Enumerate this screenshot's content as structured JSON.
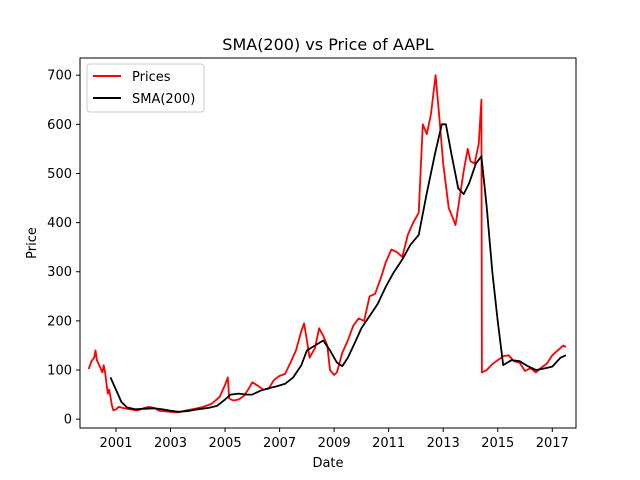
{
  "chart_data": {
    "type": "line",
    "title": "SMA(200) vs Price of AAPL",
    "xlabel": "Date",
    "ylabel": "Price",
    "x_range": [
      1999.68,
      2017.87
    ],
    "ylim": [
      -18,
      735
    ],
    "x_ticks": [
      2001,
      2003,
      2005,
      2007,
      2009,
      2011,
      2013,
      2015,
      2017
    ],
    "x_tick_labels": [
      "2001",
      "2003",
      "2005",
      "2007",
      "2009",
      "2011",
      "2013",
      "2015",
      "2017"
    ],
    "y_ticks": [
      0,
      100,
      200,
      300,
      400,
      500,
      600,
      700
    ],
    "y_tick_labels": [
      "0",
      "100",
      "200",
      "300",
      "400",
      "500",
      "600",
      "700"
    ],
    "grid": false,
    "legend_position": "top-left",
    "series": [
      {
        "name": "Prices",
        "color": "#ff0000",
        "points": [
          [
            2000.0,
            102
          ],
          [
            2000.1,
            118
          ],
          [
            2000.2,
            125
          ],
          [
            2000.25,
            140
          ],
          [
            2000.3,
            120
          ],
          [
            2000.4,
            108
          ],
          [
            2000.5,
            95
          ],
          [
            2000.55,
            110
          ],
          [
            2000.6,
            95
          ],
          [
            2000.7,
            52
          ],
          [
            2000.75,
            60
          ],
          [
            2000.8,
            45
          ],
          [
            2000.85,
            28
          ],
          [
            2000.9,
            18
          ],
          [
            2001.0,
            20
          ],
          [
            2001.1,
            25
          ],
          [
            2001.3,
            22
          ],
          [
            2001.5,
            20
          ],
          [
            2001.8,
            18
          ],
          [
            2002.0,
            22
          ],
          [
            2002.2,
            25
          ],
          [
            2002.4,
            23
          ],
          [
            2002.6,
            17
          ],
          [
            2002.8,
            16
          ],
          [
            2003.0,
            15
          ],
          [
            2003.3,
            14
          ],
          [
            2003.6,
            18
          ],
          [
            2003.9,
            21
          ],
          [
            2004.2,
            25
          ],
          [
            2004.5,
            31
          ],
          [
            2004.8,
            45
          ],
          [
            2005.0,
            70
          ],
          [
            2005.1,
            85
          ],
          [
            2005.15,
            42
          ],
          [
            2005.3,
            38
          ],
          [
            2005.5,
            40
          ],
          [
            2005.7,
            48
          ],
          [
            2005.9,
            65
          ],
          [
            2006.0,
            75
          ],
          [
            2006.2,
            68
          ],
          [
            2006.4,
            60
          ],
          [
            2006.6,
            62
          ],
          [
            2006.8,
            80
          ],
          [
            2007.0,
            88
          ],
          [
            2007.2,
            92
          ],
          [
            2007.4,
            115
          ],
          [
            2007.6,
            140
          ],
          [
            2007.8,
            180
          ],
          [
            2007.9,
            195
          ],
          [
            2008.0,
            160
          ],
          [
            2008.1,
            125
          ],
          [
            2008.3,
            145
          ],
          [
            2008.45,
            185
          ],
          [
            2008.6,
            170
          ],
          [
            2008.75,
            150
          ],
          [
            2008.85,
            100
          ],
          [
            2009.0,
            90
          ],
          [
            2009.1,
            95
          ],
          [
            2009.3,
            135
          ],
          [
            2009.5,
            160
          ],
          [
            2009.7,
            190
          ],
          [
            2009.9,
            205
          ],
          [
            2010.1,
            200
          ],
          [
            2010.3,
            250
          ],
          [
            2010.5,
            255
          ],
          [
            2010.7,
            285
          ],
          [
            2010.9,
            320
          ],
          [
            2011.1,
            345
          ],
          [
            2011.3,
            340
          ],
          [
            2011.5,
            330
          ],
          [
            2011.7,
            375
          ],
          [
            2011.9,
            400
          ],
          [
            2012.1,
            420
          ],
          [
            2012.25,
            600
          ],
          [
            2012.4,
            580
          ],
          [
            2012.55,
            620
          ],
          [
            2012.72,
            700
          ],
          [
            2012.85,
            620
          ],
          [
            2013.0,
            520
          ],
          [
            2013.2,
            430
          ],
          [
            2013.35,
            410
          ],
          [
            2013.45,
            395
          ],
          [
            2013.6,
            450
          ],
          [
            2013.75,
            505
          ],
          [
            2013.9,
            550
          ],
          [
            2014.0,
            525
          ],
          [
            2014.15,
            520
          ],
          [
            2014.3,
            560
          ],
          [
            2014.4,
            650
          ],
          [
            2014.42,
            95
          ],
          [
            2014.6,
            100
          ],
          [
            2014.8,
            112
          ],
          [
            2015.0,
            120
          ],
          [
            2015.2,
            128
          ],
          [
            2015.4,
            130
          ],
          [
            2015.6,
            118
          ],
          [
            2015.8,
            115
          ],
          [
            2016.0,
            98
          ],
          [
            2016.2,
            104
          ],
          [
            2016.4,
            95
          ],
          [
            2016.6,
            105
          ],
          [
            2016.8,
            113
          ],
          [
            2017.0,
            130
          ],
          [
            2017.2,
            140
          ],
          [
            2017.4,
            150
          ],
          [
            2017.5,
            147
          ]
        ]
      },
      {
        "name": "SMA(200)",
        "color": "#000000",
        "points": [
          [
            2000.8,
            85
          ],
          [
            2001.0,
            60
          ],
          [
            2001.2,
            35
          ],
          [
            2001.4,
            24
          ],
          [
            2001.7,
            20
          ],
          [
            2002.0,
            21
          ],
          [
            2002.4,
            22
          ],
          [
            2002.7,
            20
          ],
          [
            2003.0,
            17
          ],
          [
            2003.3,
            15
          ],
          [
            2003.7,
            17
          ],
          [
            2004.0,
            20
          ],
          [
            2004.4,
            23
          ],
          [
            2004.7,
            27
          ],
          [
            2005.0,
            40
          ],
          [
            2005.2,
            50
          ],
          [
            2005.5,
            52
          ],
          [
            2005.8,
            50
          ],
          [
            2006.0,
            50
          ],
          [
            2006.3,
            58
          ],
          [
            2006.6,
            63
          ],
          [
            2006.9,
            67
          ],
          [
            2007.2,
            72
          ],
          [
            2007.5,
            85
          ],
          [
            2007.8,
            110
          ],
          [
            2008.0,
            140
          ],
          [
            2008.3,
            150
          ],
          [
            2008.6,
            160
          ],
          [
            2008.85,
            140
          ],
          [
            2009.1,
            115
          ],
          [
            2009.3,
            108
          ],
          [
            2009.5,
            125
          ],
          [
            2009.8,
            160
          ],
          [
            2010.0,
            185
          ],
          [
            2010.3,
            210
          ],
          [
            2010.6,
            235
          ],
          [
            2010.9,
            270
          ],
          [
            2011.2,
            300
          ],
          [
            2011.5,
            325
          ],
          [
            2011.8,
            355
          ],
          [
            2012.1,
            375
          ],
          [
            2012.4,
            460
          ],
          [
            2012.7,
            540
          ],
          [
            2012.95,
            600
          ],
          [
            2013.1,
            600
          ],
          [
            2013.3,
            540
          ],
          [
            2013.55,
            470
          ],
          [
            2013.75,
            458
          ],
          [
            2013.95,
            480
          ],
          [
            2014.2,
            520
          ],
          [
            2014.4,
            535
          ],
          [
            2014.6,
            430
          ],
          [
            2014.8,
            300
          ],
          [
            2015.0,
            200
          ],
          [
            2015.2,
            110
          ],
          [
            2015.5,
            120
          ],
          [
            2015.8,
            118
          ],
          [
            2016.1,
            108
          ],
          [
            2016.4,
            100
          ],
          [
            2016.7,
            103
          ],
          [
            2017.0,
            107
          ],
          [
            2017.3,
            125
          ],
          [
            2017.5,
            130
          ]
        ]
      }
    ]
  }
}
